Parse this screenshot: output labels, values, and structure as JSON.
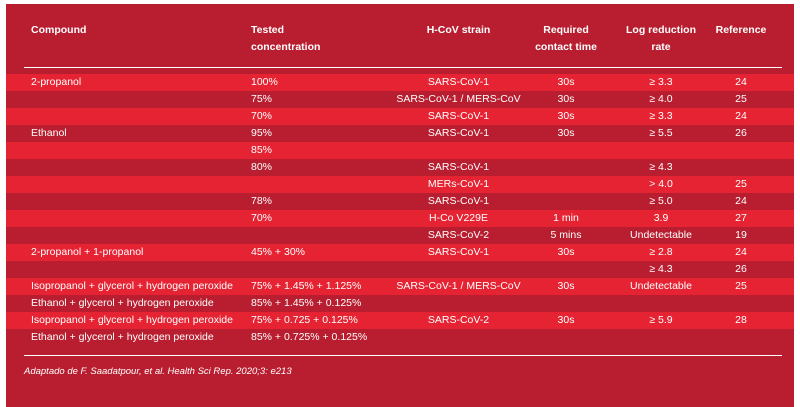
{
  "headers": {
    "compound": "Compound",
    "concentration": [
      "Tested",
      "concentration"
    ],
    "strain": "H-CoV strain",
    "time": [
      "Required",
      "contact time"
    ],
    "log": [
      "Log reduction",
      "rate"
    ],
    "reference": "Reference"
  },
  "rows": [
    {
      "compound": "2-propanol",
      "conc": "100%",
      "strain": "SARS-CoV-1",
      "time": "30s",
      "log": "≥ 3.3",
      "ref": "24"
    },
    {
      "compound": "",
      "conc": "75%",
      "strain": "SARS-CoV-1 / MERS-CoV",
      "time": "30s",
      "log": "≥ 4.0",
      "ref": "25"
    },
    {
      "compound": "",
      "conc": "70%",
      "strain": "SARS-CoV-1",
      "time": "30s",
      "log": "≥ 3.3",
      "ref": "24"
    },
    {
      "compound": "Ethanol",
      "conc": "95%",
      "strain": "SARS-CoV-1",
      "time": "30s",
      "log": "≥ 5.5",
      "ref": "26"
    },
    {
      "compound": "",
      "conc": "85%",
      "strain": "",
      "time": "",
      "log": "",
      "ref": ""
    },
    {
      "compound": "",
      "conc": "80%",
      "strain": "SARS-CoV-1",
      "time": "",
      "log": "≥ 4.3",
      "ref": ""
    },
    {
      "compound": "",
      "conc": "",
      "strain": "MERs-CoV-1",
      "time": "",
      "log": "> 4.0",
      "ref": "25"
    },
    {
      "compound": "",
      "conc": "78%",
      "strain": "SARS-CoV-1",
      "time": "",
      "log": "≥ 5.0",
      "ref": "24"
    },
    {
      "compound": "",
      "conc": "70%",
      "strain": "H-Co V229E",
      "time": "1 min",
      "log": "3.9",
      "ref": "27"
    },
    {
      "compound": "",
      "conc": "",
      "strain": "SARS-CoV-2",
      "time": "5 mins",
      "log": "Undetectable",
      "ref": "19"
    },
    {
      "compound": "2-propanol + 1-propanol",
      "conc": "45% + 30%",
      "strain": "SARS-CoV-1",
      "time": "30s",
      "log": "≥ 2.8",
      "ref": "24"
    },
    {
      "compound": "",
      "conc": "",
      "strain": "",
      "time": "",
      "log": "≥ 4.3",
      "ref": "26"
    },
    {
      "compound": "Isopropanol + glycerol + hydrogen peroxide",
      "conc": "75% + 1.45% + 1.125%",
      "strain": "SARS-CoV-1 / MERS-CoV",
      "time": "30s",
      "log": "Undetectable",
      "ref": "25"
    },
    {
      "compound": "Ethanol + glycerol + hydrogen peroxide",
      "conc": "85% + 1.45% + 0.125%",
      "strain": "",
      "time": "",
      "log": "",
      "ref": ""
    },
    {
      "compound": "Isopropanol + glycerol + hydrogen peroxide",
      "conc": "75% + 0.725 + 0.125%",
      "strain": "SARS-CoV-2",
      "time": "30s",
      "log": "≥ 5.9",
      "ref": "28"
    },
    {
      "compound": "Ethanol + glycerol + hydrogen peroxide",
      "conc": "85% + 0.725% + 0.125%",
      "strain": "",
      "time": "",
      "log": "",
      "ref": ""
    }
  ],
  "footnote": "Adaptado de F. Saadatpour, et al. Health Sci Rep. 2020;3: e213",
  "colors": {
    "panel": "#b81e2f",
    "row_alt": "#e52333",
    "text": "#ffffff"
  }
}
